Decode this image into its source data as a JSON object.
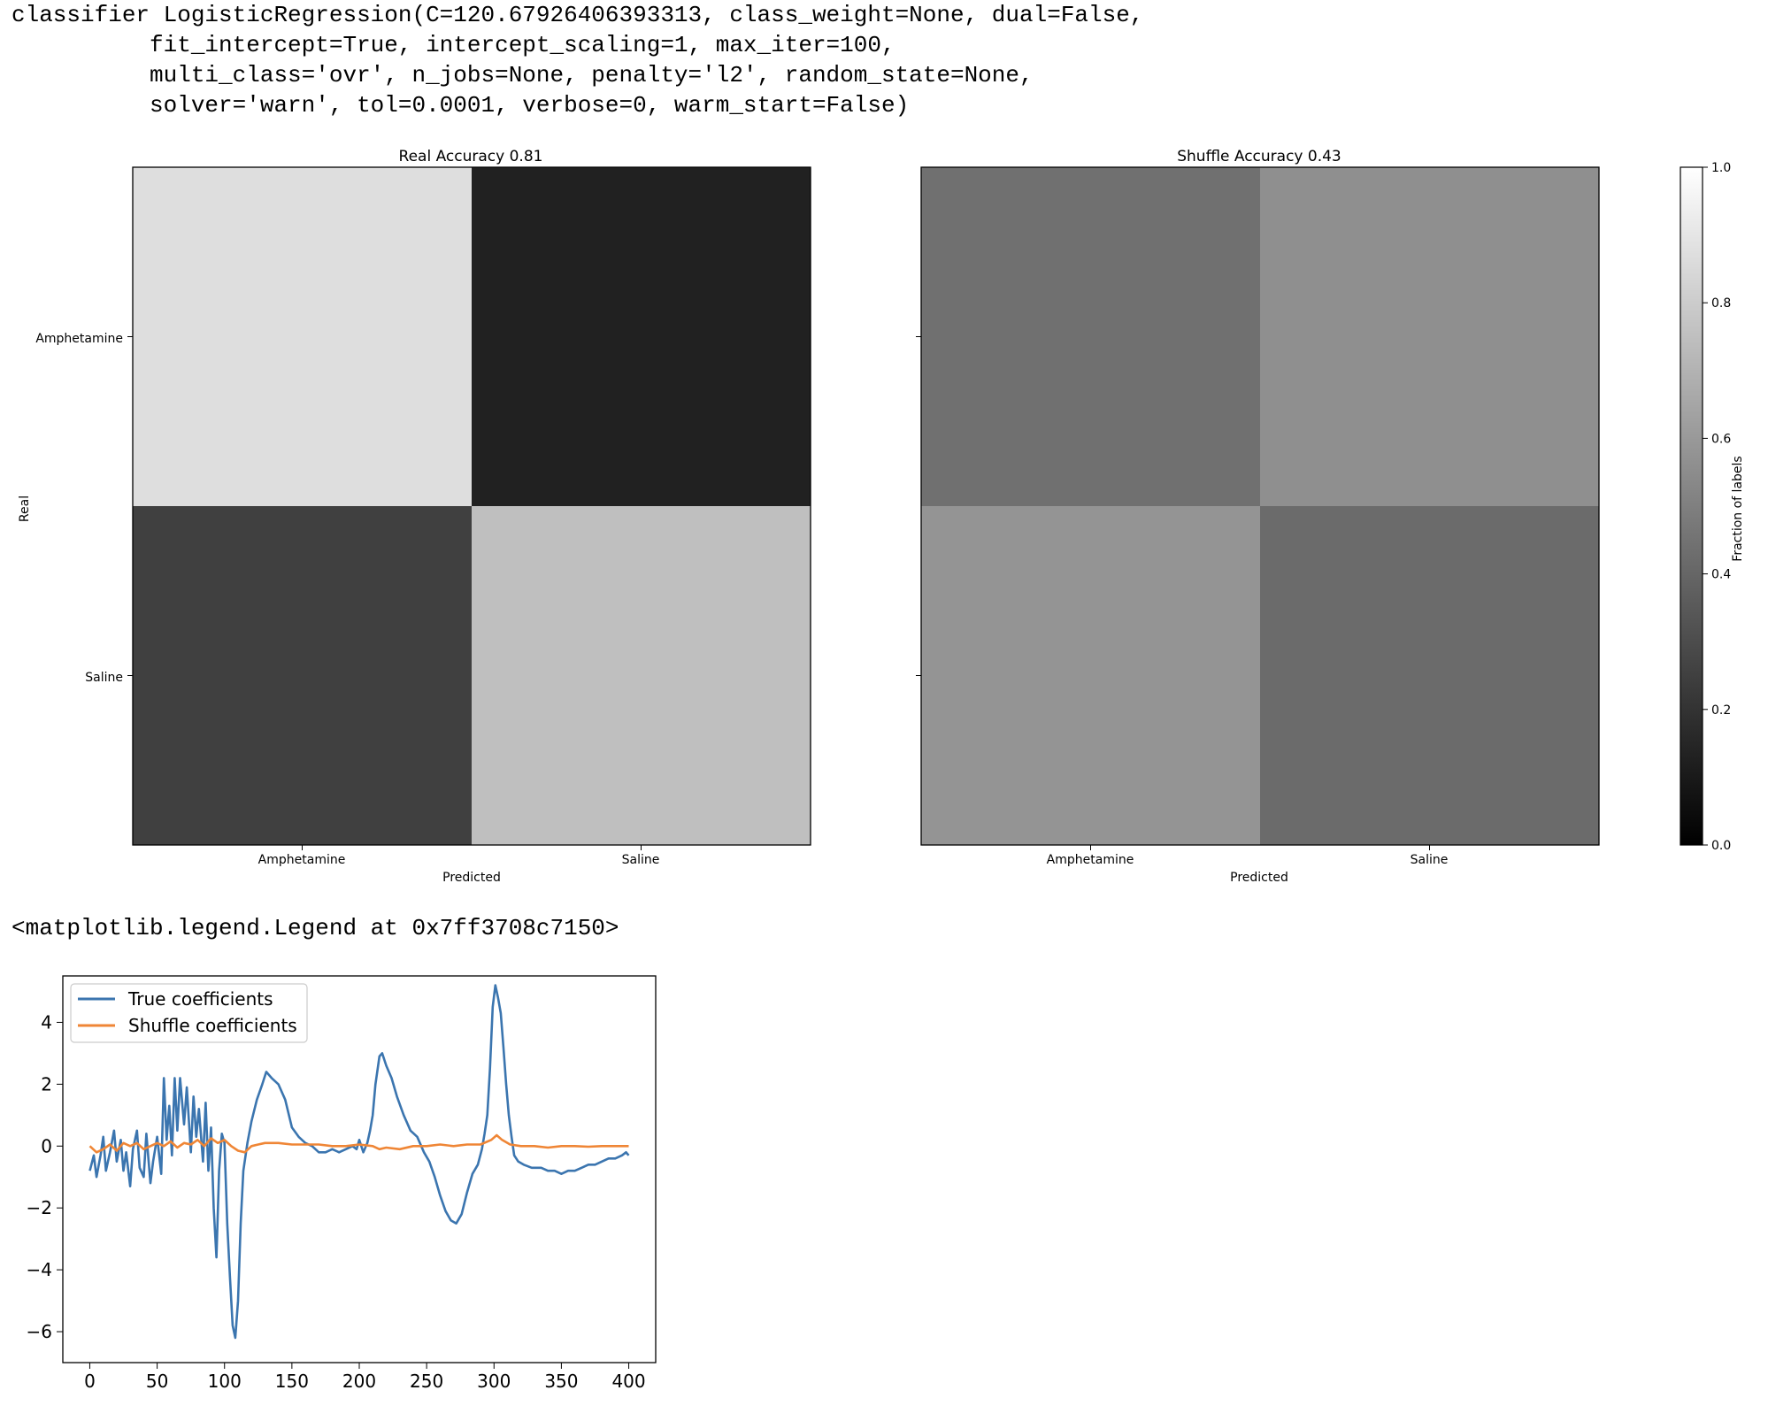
{
  "output": {
    "classifier_repr": [
      "classifier LogisticRegression(C=120.67926406393313, class_weight=None, dual=False,",
      "          fit_intercept=True, intercept_scaling=1, max_iter=100,",
      "          multi_class='ovr', n_jobs=None, penalty='l2', random_state=None,",
      "          solver='warn', tol=0.0001, verbose=0, warm_start=False)"
    ],
    "legend_repr": "<matplotlib.legend.Legend at 0x7ff3708c7150>"
  },
  "chart_data": [
    {
      "type": "heatmap",
      "title": "Real Accuracy 0.81",
      "xlabel": "Predicted",
      "ylabel": "Real",
      "x_categories": [
        "Amphetamine",
        "Saline"
      ],
      "y_categories": [
        "Amphetamine",
        "Saline"
      ],
      "values": [
        [
          0.87,
          0.13
        ],
        [
          0.25,
          0.75
        ]
      ],
      "vmin": 0,
      "vmax": 1,
      "cmap": "gray"
    },
    {
      "type": "heatmap",
      "title": "Shuffle Accuracy 0.43",
      "xlabel": "Predicted",
      "ylabel": "",
      "x_categories": [
        "Amphetamine",
        "Saline"
      ],
      "y_categories": [
        "",
        ""
      ],
      "values": [
        [
          0.44,
          0.56
        ],
        [
          0.58,
          0.42
        ]
      ],
      "vmin": 0,
      "vmax": 1,
      "cmap": "gray"
    },
    {
      "type": "colorbar",
      "label": "Fraction of labels",
      "range": [
        0,
        1
      ],
      "ticks": [
        0.0,
        0.2,
        0.4,
        0.6,
        0.8,
        1.0
      ],
      "tick_labels": [
        "0.0",
        "0.2",
        "0.4",
        "0.6",
        "0.8",
        "1.0"
      ]
    },
    {
      "type": "line",
      "title": "",
      "xlabel": "",
      "ylabel": "",
      "xlim": [
        -20,
        420
      ],
      "ylim": [
        -7,
        5.5
      ],
      "xticks": [
        0,
        50,
        100,
        150,
        200,
        250,
        300,
        350,
        400
      ],
      "yticks": [
        -6,
        -4,
        -2,
        0,
        2,
        4
      ],
      "ytick_labels": [
        "−6",
        "−4",
        "−2",
        "0",
        "2",
        "4"
      ],
      "legend_position": "upper left",
      "series": [
        {
          "name": "True coefficients",
          "color": "#3b75af",
          "keypoints": [
            [
              0,
              -0.8
            ],
            [
              3,
              -0.3
            ],
            [
              5,
              -1.0
            ],
            [
              8,
              -0.3
            ],
            [
              10,
              0.3
            ],
            [
              12,
              -0.8
            ],
            [
              15,
              -0.2
            ],
            [
              18,
              0.5
            ],
            [
              20,
              -0.5
            ],
            [
              23,
              0.2
            ],
            [
              25,
              -0.8
            ],
            [
              27,
              -0.2
            ],
            [
              30,
              -1.3
            ],
            [
              32,
              -0.1
            ],
            [
              35,
              0.5
            ],
            [
              37,
              -0.7
            ],
            [
              40,
              -1.0
            ],
            [
              42,
              0.4
            ],
            [
              45,
              -1.2
            ],
            [
              47,
              -0.5
            ],
            [
              50,
              0.3
            ],
            [
              53,
              -0.9
            ],
            [
              55,
              2.2
            ],
            [
              57,
              0.2
            ],
            [
              59,
              1.3
            ],
            [
              61,
              -0.3
            ],
            [
              63,
              2.2
            ],
            [
              65,
              0.5
            ],
            [
              67,
              2.2
            ],
            [
              70,
              0.7
            ],
            [
              72,
              1.9
            ],
            [
              75,
              -0.2
            ],
            [
              77,
              1.6
            ],
            [
              79,
              0.3
            ],
            [
              81,
              1.2
            ],
            [
              84,
              -0.5
            ],
            [
              86,
              1.4
            ],
            [
              88,
              -0.8
            ],
            [
              90,
              0.6
            ],
            [
              92,
              -2.0
            ],
            [
              94,
              -3.6
            ],
            [
              96,
              -0.8
            ],
            [
              98,
              0.4
            ],
            [
              100,
              0.1
            ],
            [
              102,
              -2.5
            ],
            [
              104,
              -4.2
            ],
            [
              106,
              -5.8
            ],
            [
              108,
              -6.2
            ],
            [
              110,
              -5.0
            ],
            [
              112,
              -2.5
            ],
            [
              114,
              -0.8
            ],
            [
              117,
              0.1
            ],
            [
              120,
              0.8
            ],
            [
              124,
              1.5
            ],
            [
              128,
              2.0
            ],
            [
              131,
              2.4
            ],
            [
              135,
              2.2
            ],
            [
              140,
              2.0
            ],
            [
              145,
              1.5
            ],
            [
              150,
              0.6
            ],
            [
              155,
              0.3
            ],
            [
              160,
              0.1
            ],
            [
              165,
              0.0
            ],
            [
              170,
              -0.2
            ],
            [
              175,
              -0.2
            ],
            [
              180,
              -0.1
            ],
            [
              185,
              -0.2
            ],
            [
              190,
              -0.1
            ],
            [
              195,
              0.0
            ],
            [
              198,
              -0.1
            ],
            [
              200,
              0.2
            ],
            [
              203,
              -0.2
            ],
            [
              206,
              0.1
            ],
            [
              208,
              0.5
            ],
            [
              210,
              1.0
            ],
            [
              212,
              2.0
            ],
            [
              215,
              2.9
            ],
            [
              217,
              3.0
            ],
            [
              220,
              2.6
            ],
            [
              224,
              2.2
            ],
            [
              228,
              1.6
            ],
            [
              233,
              1.0
            ],
            [
              238,
              0.5
            ],
            [
              243,
              0.3
            ],
            [
              248,
              -0.2
            ],
            [
              252,
              -0.5
            ],
            [
              256,
              -1.0
            ],
            [
              260,
              -1.6
            ],
            [
              264,
              -2.1
            ],
            [
              268,
              -2.4
            ],
            [
              272,
              -2.5
            ],
            [
              276,
              -2.2
            ],
            [
              280,
              -1.5
            ],
            [
              284,
              -0.9
            ],
            [
              288,
              -0.6
            ],
            [
              291,
              -0.1
            ],
            [
              293,
              0.4
            ],
            [
              295,
              1.0
            ],
            [
              297,
              2.5
            ],
            [
              299,
              4.5
            ],
            [
              301,
              5.2
            ],
            [
              303,
              4.8
            ],
            [
              305,
              4.3
            ],
            [
              307,
              3.2
            ],
            [
              309,
              2.0
            ],
            [
              311,
              1.0
            ],
            [
              313,
              0.3
            ],
            [
              315,
              -0.3
            ],
            [
              318,
              -0.5
            ],
            [
              322,
              -0.6
            ],
            [
              328,
              -0.7
            ],
            [
              335,
              -0.7
            ],
            [
              340,
              -0.8
            ],
            [
              345,
              -0.8
            ],
            [
              350,
              -0.9
            ],
            [
              355,
              -0.8
            ],
            [
              360,
              -0.8
            ],
            [
              365,
              -0.7
            ],
            [
              370,
              -0.6
            ],
            [
              375,
              -0.6
            ],
            [
              380,
              -0.5
            ],
            [
              385,
              -0.4
            ],
            [
              390,
              -0.4
            ],
            [
              395,
              -0.3
            ],
            [
              398,
              -0.2
            ],
            [
              400,
              -0.3
            ]
          ]
        },
        {
          "name": "Shuffle coefficients",
          "color": "#ef8636",
          "keypoints": [
            [
              0,
              0.0
            ],
            [
              5,
              -0.2
            ],
            [
              10,
              -0.1
            ],
            [
              15,
              0.05
            ],
            [
              20,
              -0.15
            ],
            [
              25,
              0.1
            ],
            [
              30,
              0.0
            ],
            [
              35,
              0.1
            ],
            [
              40,
              -0.1
            ],
            [
              45,
              0.0
            ],
            [
              50,
              0.1
            ],
            [
              55,
              0.0
            ],
            [
              60,
              0.15
            ],
            [
              65,
              -0.05
            ],
            [
              70,
              0.1
            ],
            [
              75,
              0.05
            ],
            [
              80,
              0.2
            ],
            [
              85,
              0.0
            ],
            [
              90,
              0.25
            ],
            [
              95,
              0.1
            ],
            [
              100,
              0.2
            ],
            [
              105,
              0.0
            ],
            [
              110,
              -0.15
            ],
            [
              115,
              -0.2
            ],
            [
              120,
              0.0
            ],
            [
              125,
              0.05
            ],
            [
              130,
              0.1
            ],
            [
              140,
              0.1
            ],
            [
              150,
              0.05
            ],
            [
              160,
              0.05
            ],
            [
              170,
              0.05
            ],
            [
              180,
              0.0
            ],
            [
              190,
              0.0
            ],
            [
              200,
              0.05
            ],
            [
              210,
              0.0
            ],
            [
              215,
              -0.1
            ],
            [
              220,
              -0.05
            ],
            [
              230,
              -0.1
            ],
            [
              240,
              0.0
            ],
            [
              250,
              0.0
            ],
            [
              260,
              0.05
            ],
            [
              270,
              0.0
            ],
            [
              280,
              0.05
            ],
            [
              290,
              0.05
            ],
            [
              298,
              0.2
            ],
            [
              302,
              0.35
            ],
            [
              306,
              0.2
            ],
            [
              312,
              0.05
            ],
            [
              320,
              0.0
            ],
            [
              330,
              0.0
            ],
            [
              340,
              -0.05
            ],
            [
              350,
              0.0
            ],
            [
              360,
              0.0
            ],
            [
              370,
              -0.02
            ],
            [
              380,
              0.0
            ],
            [
              390,
              0.0
            ],
            [
              400,
              0.0
            ]
          ]
        }
      ]
    }
  ]
}
